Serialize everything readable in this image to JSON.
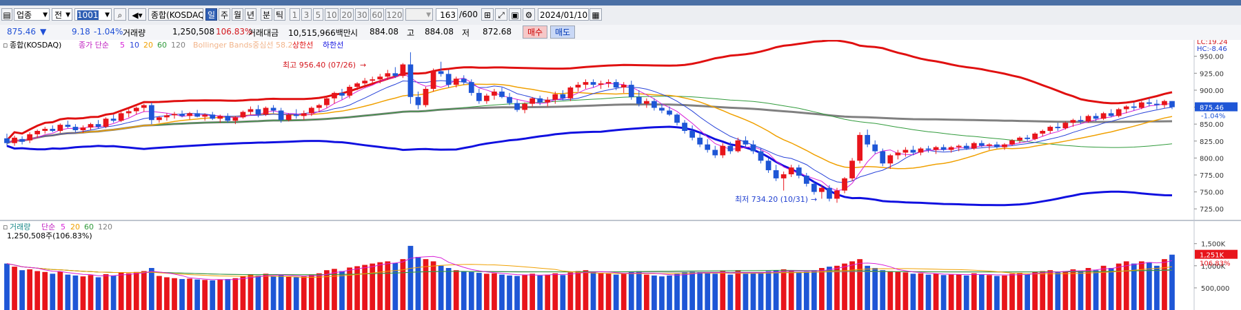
{
  "toolbar": {
    "market_select": "업종",
    "period_select": "전",
    "code_value": "1001",
    "index_name": "종합(KOSDAQ)",
    "periods": [
      "일",
      "주",
      "월",
      "년",
      "분",
      "틱"
    ],
    "active_period": "일",
    "minute_options": [
      "1",
      "3",
      "5",
      "10",
      "20",
      "30",
      "60",
      "120"
    ],
    "count_value": "163",
    "count_total": "/600",
    "date_value": "2024/01/10"
  },
  "info": {
    "price": "875.46",
    "arrow": "▼",
    "change": "9.18",
    "change_pct": "-1.04%",
    "volume_label": "거래량",
    "volume": "1,250,508",
    "volume_pct": "106.83%",
    "amount_label": "거래대금",
    "amount": "10,515,966백만",
    "open_label": "시",
    "open": "884.08",
    "high_label": "고",
    "high": "884.08",
    "low_label": "저",
    "low": "872.68",
    "buy_label": "매수",
    "sell_label": "매도"
  },
  "price_legend": {
    "name": "종합(KOSDAQ)",
    "ma_label": "종가 단순",
    "ma_periods": [
      "5",
      "10",
      "20",
      "60",
      "120"
    ],
    "bb_label": "Bollinger Bands중심선 58.2",
    "upper_label": "상한선",
    "lower_label": "하한선"
  },
  "volume_legend": {
    "name": "거래량",
    "ma_label": "단순",
    "ma_periods": [
      "5",
      "20",
      "60",
      "120"
    ],
    "current": "1,250,508주(106.83%)"
  },
  "annotations": {
    "high": "최고 956.40 (07/26)",
    "low": "최저 734.20 (10/31)"
  },
  "right_axis": {
    "lc": "LC:19.24",
    "hc": "HC:-8.46",
    "price_ticks": [
      "950.00",
      "925.00",
      "900.00",
      "875.00",
      "850.00",
      "825.00",
      "800.00",
      "775.00",
      "750.00",
      "725.00"
    ],
    "current_price": "875.46",
    "current_pct": "-1.04%",
    "volume_ticks": [
      "1,500K",
      "1,000K",
      "500,000"
    ],
    "current_volume": "1,251K",
    "current_volume_pct": "106.83%"
  },
  "colors": {
    "up": "#e8151b",
    "down": "#1e56d6",
    "ma5": "#d81fd8",
    "ma10": "#2540d8",
    "ma20": "#f0a000",
    "ma60": "#2f9a3a",
    "ma120": "#808080",
    "bb_upper": "#e01010",
    "bb_lower": "#1010e0"
  },
  "chart_data": {
    "type": "candlestick",
    "ylim": [
      712,
      968
    ],
    "volume_ylim": [
      0,
      1900
    ],
    "candles": [
      {
        "o": 829,
        "h": 836,
        "l": 818,
        "c": 822,
        "v": 1050
      },
      {
        "o": 822,
        "h": 833,
        "l": 818,
        "c": 830,
        "v": 980
      },
      {
        "o": 828,
        "h": 832,
        "l": 820,
        "c": 824,
        "v": 900
      },
      {
        "o": 826,
        "h": 838,
        "l": 822,
        "c": 835,
        "v": 920
      },
      {
        "o": 835,
        "h": 842,
        "l": 830,
        "c": 840,
        "v": 880
      },
      {
        "o": 840,
        "h": 846,
        "l": 836,
        "c": 843,
        "v": 860
      },
      {
        "o": 843,
        "h": 848,
        "l": 838,
        "c": 840,
        "v": 820
      },
      {
        "o": 840,
        "h": 851,
        "l": 837,
        "c": 849,
        "v": 870
      },
      {
        "o": 849,
        "h": 855,
        "l": 844,
        "c": 846,
        "v": 800
      },
      {
        "o": 846,
        "h": 850,
        "l": 838,
        "c": 841,
        "v": 780
      },
      {
        "o": 841,
        "h": 848,
        "l": 837,
        "c": 845,
        "v": 760
      },
      {
        "o": 845,
        "h": 852,
        "l": 841,
        "c": 850,
        "v": 790
      },
      {
        "o": 850,
        "h": 856,
        "l": 844,
        "c": 846,
        "v": 740
      },
      {
        "o": 846,
        "h": 860,
        "l": 844,
        "c": 858,
        "v": 810
      },
      {
        "o": 858,
        "h": 864,
        "l": 852,
        "c": 855,
        "v": 780
      },
      {
        "o": 855,
        "h": 868,
        "l": 853,
        "c": 866,
        "v": 850
      },
      {
        "o": 866,
        "h": 872,
        "l": 860,
        "c": 869,
        "v": 830
      },
      {
        "o": 869,
        "h": 876,
        "l": 864,
        "c": 874,
        "v": 860
      },
      {
        "o": 874,
        "h": 880,
        "l": 868,
        "c": 878,
        "v": 880
      },
      {
        "o": 878,
        "h": 882,
        "l": 850,
        "c": 856,
        "v": 950
      },
      {
        "o": 856,
        "h": 862,
        "l": 852,
        "c": 860,
        "v": 770
      },
      {
        "o": 860,
        "h": 866,
        "l": 855,
        "c": 863,
        "v": 740
      },
      {
        "o": 863,
        "h": 868,
        "l": 858,
        "c": 865,
        "v": 720
      },
      {
        "o": 865,
        "h": 870,
        "l": 860,
        "c": 862,
        "v": 700
      },
      {
        "o": 862,
        "h": 868,
        "l": 857,
        "c": 866,
        "v": 710
      },
      {
        "o": 866,
        "h": 871,
        "l": 860,
        "c": 861,
        "v": 690
      },
      {
        "o": 861,
        "h": 866,
        "l": 855,
        "c": 864,
        "v": 680
      },
      {
        "o": 864,
        "h": 868,
        "l": 856,
        "c": 858,
        "v": 670
      },
      {
        "o": 858,
        "h": 864,
        "l": 852,
        "c": 862,
        "v": 690
      },
      {
        "o": 862,
        "h": 866,
        "l": 852,
        "c": 855,
        "v": 700
      },
      {
        "o": 855,
        "h": 862,
        "l": 850,
        "c": 860,
        "v": 720
      },
      {
        "o": 860,
        "h": 870,
        "l": 858,
        "c": 868,
        "v": 760
      },
      {
        "o": 868,
        "h": 876,
        "l": 864,
        "c": 872,
        "v": 800
      },
      {
        "o": 872,
        "h": 878,
        "l": 860,
        "c": 864,
        "v": 780
      },
      {
        "o": 864,
        "h": 876,
        "l": 862,
        "c": 874,
        "v": 820
      },
      {
        "o": 874,
        "h": 878,
        "l": 866,
        "c": 870,
        "v": 760
      },
      {
        "o": 870,
        "h": 874,
        "l": 852,
        "c": 856,
        "v": 800
      },
      {
        "o": 856,
        "h": 866,
        "l": 854,
        "c": 864,
        "v": 760
      },
      {
        "o": 864,
        "h": 872,
        "l": 858,
        "c": 862,
        "v": 740
      },
      {
        "o": 862,
        "h": 870,
        "l": 856,
        "c": 866,
        "v": 760
      },
      {
        "o": 866,
        "h": 876,
        "l": 862,
        "c": 874,
        "v": 800
      },
      {
        "o": 874,
        "h": 880,
        "l": 868,
        "c": 878,
        "v": 830
      },
      {
        "o": 878,
        "h": 892,
        "l": 874,
        "c": 888,
        "v": 900
      },
      {
        "o": 888,
        "h": 898,
        "l": 880,
        "c": 896,
        "v": 930
      },
      {
        "o": 896,
        "h": 902,
        "l": 886,
        "c": 892,
        "v": 880
      },
      {
        "o": 892,
        "h": 908,
        "l": 888,
        "c": 905,
        "v": 960
      },
      {
        "o": 905,
        "h": 912,
        "l": 900,
        "c": 910,
        "v": 990
      },
      {
        "o": 910,
        "h": 918,
        "l": 904,
        "c": 914,
        "v": 1020
      },
      {
        "o": 914,
        "h": 920,
        "l": 908,
        "c": 916,
        "v": 1050
      },
      {
        "o": 916,
        "h": 924,
        "l": 910,
        "c": 920,
        "v": 1080
      },
      {
        "o": 920,
        "h": 930,
        "l": 915,
        "c": 925,
        "v": 1100
      },
      {
        "o": 925,
        "h": 934,
        "l": 918,
        "c": 921,
        "v": 1060
      },
      {
        "o": 921,
        "h": 940,
        "l": 918,
        "c": 938,
        "v": 1150
      },
      {
        "o": 938,
        "h": 956,
        "l": 880,
        "c": 890,
        "v": 1450
      },
      {
        "o": 890,
        "h": 898,
        "l": 872,
        "c": 878,
        "v": 1200
      },
      {
        "o": 878,
        "h": 905,
        "l": 875,
        "c": 902,
        "v": 1150
      },
      {
        "o": 902,
        "h": 932,
        "l": 898,
        "c": 928,
        "v": 1100
      },
      {
        "o": 928,
        "h": 942,
        "l": 920,
        "c": 924,
        "v": 1000
      },
      {
        "o": 924,
        "h": 930,
        "l": 904,
        "c": 908,
        "v": 950
      },
      {
        "o": 908,
        "h": 920,
        "l": 904,
        "c": 917,
        "v": 900
      },
      {
        "o": 917,
        "h": 922,
        "l": 908,
        "c": 912,
        "v": 880
      },
      {
        "o": 912,
        "h": 916,
        "l": 892,
        "c": 896,
        "v": 860
      },
      {
        "o": 896,
        "h": 902,
        "l": 880,
        "c": 884,
        "v": 840
      },
      {
        "o": 884,
        "h": 895,
        "l": 880,
        "c": 892,
        "v": 820
      },
      {
        "o": 892,
        "h": 902,
        "l": 886,
        "c": 898,
        "v": 830
      },
      {
        "o": 898,
        "h": 904,
        "l": 888,
        "c": 890,
        "v": 800
      },
      {
        "o": 890,
        "h": 896,
        "l": 878,
        "c": 881,
        "v": 780
      },
      {
        "o": 881,
        "h": 886,
        "l": 868,
        "c": 871,
        "v": 770
      },
      {
        "o": 871,
        "h": 882,
        "l": 866,
        "c": 880,
        "v": 790
      },
      {
        "o": 880,
        "h": 890,
        "l": 876,
        "c": 888,
        "v": 820
      },
      {
        "o": 888,
        "h": 892,
        "l": 878,
        "c": 882,
        "v": 780
      },
      {
        "o": 882,
        "h": 890,
        "l": 876,
        "c": 886,
        "v": 800
      },
      {
        "o": 886,
        "h": 898,
        "l": 880,
        "c": 894,
        "v": 830
      },
      {
        "o": 894,
        "h": 900,
        "l": 885,
        "c": 888,
        "v": 790
      },
      {
        "o": 888,
        "h": 906,
        "l": 884,
        "c": 904,
        "v": 850
      },
      {
        "o": 904,
        "h": 912,
        "l": 898,
        "c": 908,
        "v": 880
      },
      {
        "o": 908,
        "h": 916,
        "l": 902,
        "c": 912,
        "v": 900
      },
      {
        "o": 912,
        "h": 916,
        "l": 904,
        "c": 908,
        "v": 860
      },
      {
        "o": 908,
        "h": 914,
        "l": 902,
        "c": 910,
        "v": 840
      },
      {
        "o": 910,
        "h": 916,
        "l": 904,
        "c": 912,
        "v": 830
      },
      {
        "o": 912,
        "h": 916,
        "l": 900,
        "c": 904,
        "v": 800
      },
      {
        "o": 904,
        "h": 912,
        "l": 896,
        "c": 908,
        "v": 820
      },
      {
        "o": 908,
        "h": 914,
        "l": 886,
        "c": 890,
        "v": 860
      },
      {
        "o": 890,
        "h": 900,
        "l": 876,
        "c": 880,
        "v": 880
      },
      {
        "o": 880,
        "h": 888,
        "l": 874,
        "c": 884,
        "v": 800
      },
      {
        "o": 884,
        "h": 888,
        "l": 870,
        "c": 874,
        "v": 780
      },
      {
        "o": 874,
        "h": 880,
        "l": 866,
        "c": 870,
        "v": 760
      },
      {
        "o": 870,
        "h": 876,
        "l": 862,
        "c": 864,
        "v": 780
      },
      {
        "o": 864,
        "h": 866,
        "l": 848,
        "c": 852,
        "v": 820
      },
      {
        "o": 852,
        "h": 856,
        "l": 836,
        "c": 840,
        "v": 850
      },
      {
        "o": 840,
        "h": 848,
        "l": 826,
        "c": 830,
        "v": 870
      },
      {
        "o": 830,
        "h": 838,
        "l": 816,
        "c": 820,
        "v": 860
      },
      {
        "o": 820,
        "h": 828,
        "l": 808,
        "c": 812,
        "v": 830
      },
      {
        "o": 812,
        "h": 818,
        "l": 800,
        "c": 804,
        "v": 820
      },
      {
        "o": 804,
        "h": 822,
        "l": 800,
        "c": 818,
        "v": 880
      },
      {
        "o": 818,
        "h": 824,
        "l": 806,
        "c": 810,
        "v": 800
      },
      {
        "o": 810,
        "h": 830,
        "l": 808,
        "c": 826,
        "v": 900
      },
      {
        "o": 826,
        "h": 832,
        "l": 816,
        "c": 820,
        "v": 820
      },
      {
        "o": 820,
        "h": 826,
        "l": 806,
        "c": 810,
        "v": 830
      },
      {
        "o": 810,
        "h": 814,
        "l": 792,
        "c": 796,
        "v": 860
      },
      {
        "o": 796,
        "h": 800,
        "l": 778,
        "c": 782,
        "v": 880
      },
      {
        "o": 782,
        "h": 790,
        "l": 766,
        "c": 770,
        "v": 900
      },
      {
        "o": 770,
        "h": 780,
        "l": 752,
        "c": 776,
        "v": 920
      },
      {
        "o": 776,
        "h": 790,
        "l": 772,
        "c": 786,
        "v": 880
      },
      {
        "o": 786,
        "h": 790,
        "l": 770,
        "c": 774,
        "v": 850
      },
      {
        "o": 774,
        "h": 778,
        "l": 758,
        "c": 762,
        "v": 870
      },
      {
        "o": 762,
        "h": 766,
        "l": 746,
        "c": 750,
        "v": 900
      },
      {
        "o": 750,
        "h": 760,
        "l": 740,
        "c": 756,
        "v": 950
      },
      {
        "o": 756,
        "h": 760,
        "l": 736,
        "c": 740,
        "v": 980
      },
      {
        "o": 740,
        "h": 756,
        "l": 734,
        "c": 752,
        "v": 1000
      },
      {
        "o": 752,
        "h": 772,
        "l": 748,
        "c": 770,
        "v": 1050
      },
      {
        "o": 770,
        "h": 800,
        "l": 766,
        "c": 796,
        "v": 1100
      },
      {
        "o": 796,
        "h": 838,
        "l": 792,
        "c": 834,
        "v": 1150
      },
      {
        "o": 834,
        "h": 842,
        "l": 816,
        "c": 820,
        "v": 1000
      },
      {
        "o": 820,
        "h": 826,
        "l": 806,
        "c": 810,
        "v": 950
      },
      {
        "o": 810,
        "h": 814,
        "l": 788,
        "c": 792,
        "v": 900
      },
      {
        "o": 792,
        "h": 806,
        "l": 784,
        "c": 804,
        "v": 880
      },
      {
        "o": 804,
        "h": 812,
        "l": 798,
        "c": 808,
        "v": 860
      },
      {
        "o": 808,
        "h": 816,
        "l": 802,
        "c": 812,
        "v": 850
      },
      {
        "o": 812,
        "h": 818,
        "l": 804,
        "c": 808,
        "v": 820
      },
      {
        "o": 808,
        "h": 816,
        "l": 804,
        "c": 814,
        "v": 830
      },
      {
        "o": 814,
        "h": 818,
        "l": 808,
        "c": 812,
        "v": 800
      },
      {
        "o": 812,
        "h": 818,
        "l": 806,
        "c": 816,
        "v": 820
      },
      {
        "o": 816,
        "h": 820,
        "l": 810,
        "c": 812,
        "v": 790
      },
      {
        "o": 812,
        "h": 818,
        "l": 808,
        "c": 816,
        "v": 800
      },
      {
        "o": 816,
        "h": 820,
        "l": 810,
        "c": 818,
        "v": 810
      },
      {
        "o": 818,
        "h": 822,
        "l": 812,
        "c": 814,
        "v": 780
      },
      {
        "o": 814,
        "h": 824,
        "l": 812,
        "c": 822,
        "v": 830
      },
      {
        "o": 822,
        "h": 826,
        "l": 816,
        "c": 818,
        "v": 800
      },
      {
        "o": 818,
        "h": 822,
        "l": 812,
        "c": 820,
        "v": 790
      },
      {
        "o": 820,
        "h": 824,
        "l": 814,
        "c": 816,
        "v": 770
      },
      {
        "o": 816,
        "h": 822,
        "l": 812,
        "c": 820,
        "v": 780
      },
      {
        "o": 820,
        "h": 828,
        "l": 818,
        "c": 826,
        "v": 820
      },
      {
        "o": 826,
        "h": 832,
        "l": 822,
        "c": 830,
        "v": 840
      },
      {
        "o": 830,
        "h": 834,
        "l": 824,
        "c": 828,
        "v": 800
      },
      {
        "o": 828,
        "h": 838,
        "l": 826,
        "c": 836,
        "v": 860
      },
      {
        "o": 836,
        "h": 842,
        "l": 832,
        "c": 840,
        "v": 880
      },
      {
        "o": 840,
        "h": 848,
        "l": 836,
        "c": 846,
        "v": 900
      },
      {
        "o": 846,
        "h": 852,
        "l": 840,
        "c": 844,
        "v": 850
      },
      {
        "o": 844,
        "h": 854,
        "l": 842,
        "c": 852,
        "v": 880
      },
      {
        "o": 852,
        "h": 858,
        "l": 846,
        "c": 856,
        "v": 920
      },
      {
        "o": 856,
        "h": 862,
        "l": 850,
        "c": 854,
        "v": 880
      },
      {
        "o": 854,
        "h": 864,
        "l": 852,
        "c": 862,
        "v": 950
      },
      {
        "o": 862,
        "h": 866,
        "l": 854,
        "c": 858,
        "v": 900
      },
      {
        "o": 858,
        "h": 868,
        "l": 856,
        "c": 866,
        "v": 1000
      },
      {
        "o": 866,
        "h": 872,
        "l": 860,
        "c": 862,
        "v": 950
      },
      {
        "o": 862,
        "h": 874,
        "l": 860,
        "c": 872,
        "v": 1050
      },
      {
        "o": 872,
        "h": 878,
        "l": 866,
        "c": 876,
        "v": 1100
      },
      {
        "o": 876,
        "h": 882,
        "l": 870,
        "c": 874,
        "v": 1050
      },
      {
        "o": 874,
        "h": 884,
        "l": 872,
        "c": 882,
        "v": 1100
      },
      {
        "o": 882,
        "h": 888,
        "l": 876,
        "c": 880,
        "v": 1080
      },
      {
        "o": 880,
        "h": 886,
        "l": 872,
        "c": 878,
        "v": 1000
      },
      {
        "o": 878,
        "h": 886,
        "l": 874,
        "c": 884,
        "v": 1150
      },
      {
        "o": 884,
        "h": 884,
        "l": 872,
        "c": 875,
        "v": 1251
      }
    ]
  }
}
